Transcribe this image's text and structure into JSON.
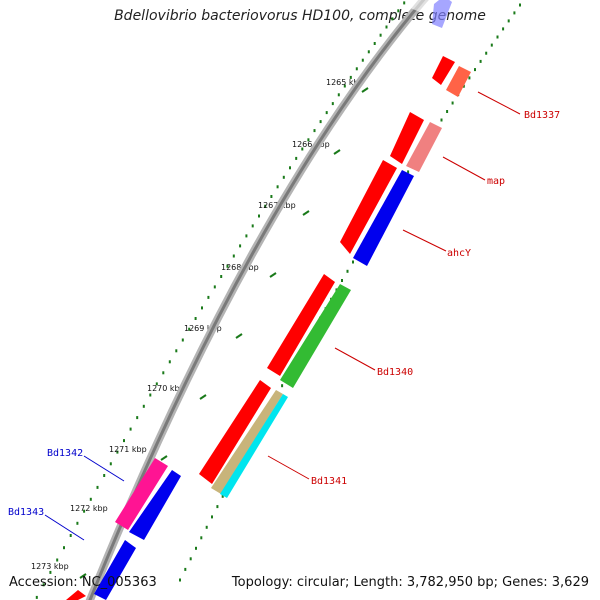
{
  "title": "Bdellovibrio bacteriovorus HD100, complete genome",
  "ruler": {
    "tick_labels": [
      "1265 kbp",
      "1266 kbp",
      "1267 kbp",
      "1268 kbp",
      "1269 kbp",
      "1270 kbp",
      "1271 kbp",
      "1272 kbp",
      "1273 kbp"
    ]
  },
  "gene_labels": {
    "forward": [
      "Bd1337",
      "map",
      "ahcY",
      "Bd1340",
      "Bd1341"
    ],
    "reverse": [
      "Bd1342",
      "Bd1343"
    ]
  },
  "colors": {
    "backbone": "#8a8a8a",
    "tick": "#1a7a1a",
    "forward_label": "#cc0000",
    "reverse_label": "#0000cc",
    "red": "#ff0000",
    "blue": "#0000ee",
    "pink": "#f08080",
    "salmon": "#ff6347",
    "green": "#33bb33",
    "tan": "#c8b47a",
    "cyan": "#00e5ee",
    "magenta": "#ff1493"
  },
  "footer": {
    "accession": "Accession: NC_005363",
    "summary": "Topology: circular; Length: 3,782,950 bp; Genes: 3,629"
  }
}
